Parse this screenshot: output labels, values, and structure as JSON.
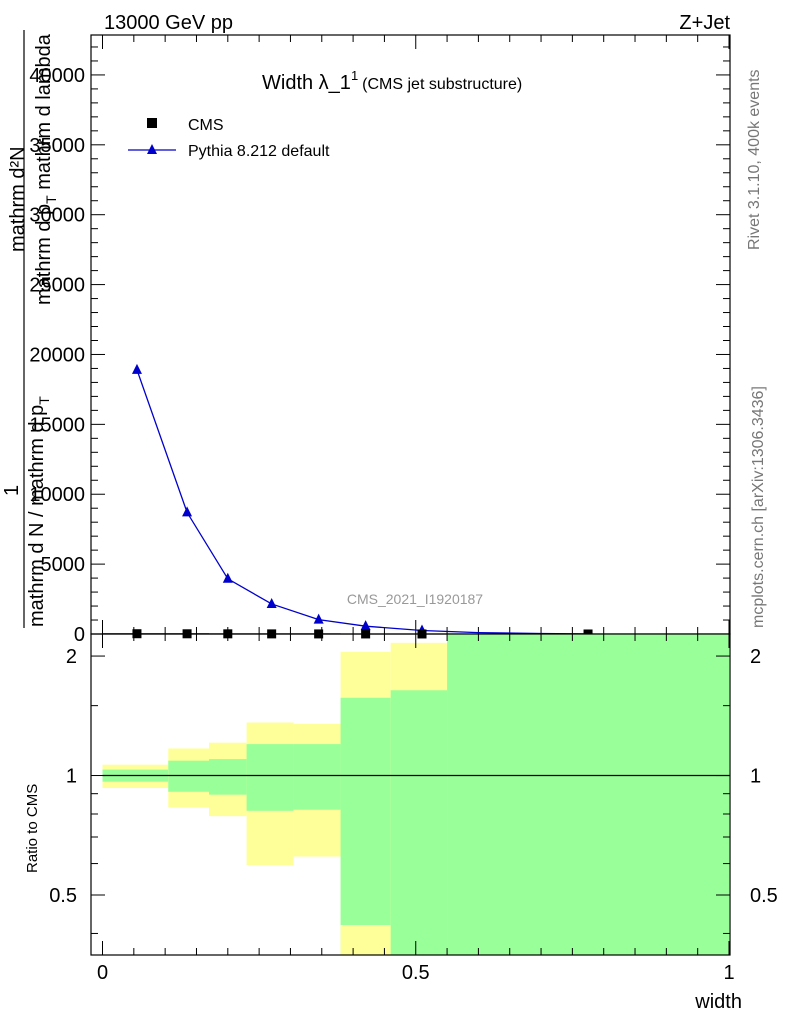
{
  "header": {
    "left": "13000 GeV pp",
    "right": "Z+Jet"
  },
  "side": {
    "top": "Rivet 3.1.10,  400k events",
    "bottom": "mcplots.cern.ch [arXiv:1306.3436]"
  },
  "watermark": "CMS_2021_I1920187",
  "chart_data": [
    {
      "type": "line",
      "title_main": "Width λ_1",
      "title_sup": "1",
      "title_sub": "(CMS jet substructure)",
      "ylabel_numerator_1": "mathrm d²N",
      "ylabel_numerator_2": "mathrm d p",
      "ylabel_numerator_2_sub": "T",
      "ylabel_numerator_3": " mathrm d lambda",
      "ylabel_one": "1",
      "ylabel_denominator": "mathrm d N / mathrm d p",
      "ylabel_denominator_sub": "T",
      "xlim": [
        0,
        1
      ],
      "ylim": [
        0,
        42857
      ],
      "yticks": [
        0,
        5000,
        10000,
        15000,
        20000,
        25000,
        30000,
        35000,
        40000
      ],
      "ytick_labels": [
        "0",
        "5000",
        "10000",
        "15000",
        "20000",
        "25000",
        "30000",
        "35000",
        "40000"
      ],
      "legend_position": "top-left",
      "series": [
        {
          "name": "CMS",
          "marker": "square",
          "color": "#000000",
          "x": [
            0.055,
            0.135,
            0.2,
            0.27,
            0.345,
            0.42,
            0.51,
            0.775
          ],
          "y": [
            20,
            15,
            12,
            8,
            6,
            4,
            2,
            1
          ],
          "xerr": [
            [
              0.0,
              0.11
            ],
            [
              0.11,
              0.17
            ],
            [
              0.17,
              0.23
            ],
            [
              0.23,
              0.31
            ],
            [
              0.31,
              0.38
            ],
            [
              0.38,
              0.46
            ],
            [
              0.46,
              0.56
            ],
            [
              0.56,
              1.0
            ]
          ]
        },
        {
          "name": "Pythia 8.212 default",
          "marker": "triangle",
          "color": "#0000cc",
          "x": [
            0.055,
            0.135,
            0.2,
            0.27,
            0.345,
            0.42,
            0.51,
            0.6,
            0.7,
            0.775
          ],
          "y": [
            18900,
            8700,
            3950,
            2150,
            1030,
            560,
            250,
            100,
            30,
            5
          ]
        }
      ]
    },
    {
      "type": "area",
      "ylabel": "Ratio to CMS",
      "xlabel": "width",
      "xlim": [
        0,
        1
      ],
      "ylim": [
        0.353,
        2.273
      ],
      "yticks": [
        0.5,
        1,
        2
      ],
      "ytick_labels": [
        "0.5",
        "1",
        "2"
      ],
      "xticks": [
        0,
        0.5,
        1
      ],
      "xtick_labels": [
        "0",
        "0.5",
        "1"
      ],
      "reference_line": 1,
      "bins": [
        {
          "x0": 0.0,
          "x1": 0.105,
          "green": [
            0.965,
            1.035
          ],
          "yellow": [
            0.93,
            1.065
          ]
        },
        {
          "x0": 0.105,
          "x1": 0.17,
          "green": [
            0.91,
            1.09
          ],
          "yellow": [
            0.83,
            1.17
          ]
        },
        {
          "x0": 0.17,
          "x1": 0.23,
          "green": [
            0.895,
            1.1
          ],
          "yellow": [
            0.79,
            1.21
          ]
        },
        {
          "x0": 0.23,
          "x1": 0.305,
          "green": [
            0.815,
            1.2
          ],
          "yellow": [
            0.595,
            1.36
          ]
        },
        {
          "x0": 0.305,
          "x1": 0.38,
          "green": [
            0.82,
            1.2
          ],
          "yellow": [
            0.625,
            1.35
          ]
        },
        {
          "x0": 0.38,
          "x1": 0.46,
          "green": [
            0.353,
            1.57
          ],
          "yellow": [
            0.353,
            2.05
          ],
          "yellow_low": [
            0.353,
            0.42
          ]
        },
        {
          "x0": 0.46,
          "x1": 0.55,
          "green": [
            0.353,
            1.64
          ],
          "yellow": [
            0.353,
            2.16
          ]
        },
        {
          "x0": 0.55,
          "x1": 1.0,
          "green": [
            0.353,
            2.273
          ],
          "yellow": [
            0.353,
            2.273
          ]
        }
      ],
      "colors": {
        "green": "#99ff99",
        "yellow": "#ffff99"
      }
    }
  ]
}
